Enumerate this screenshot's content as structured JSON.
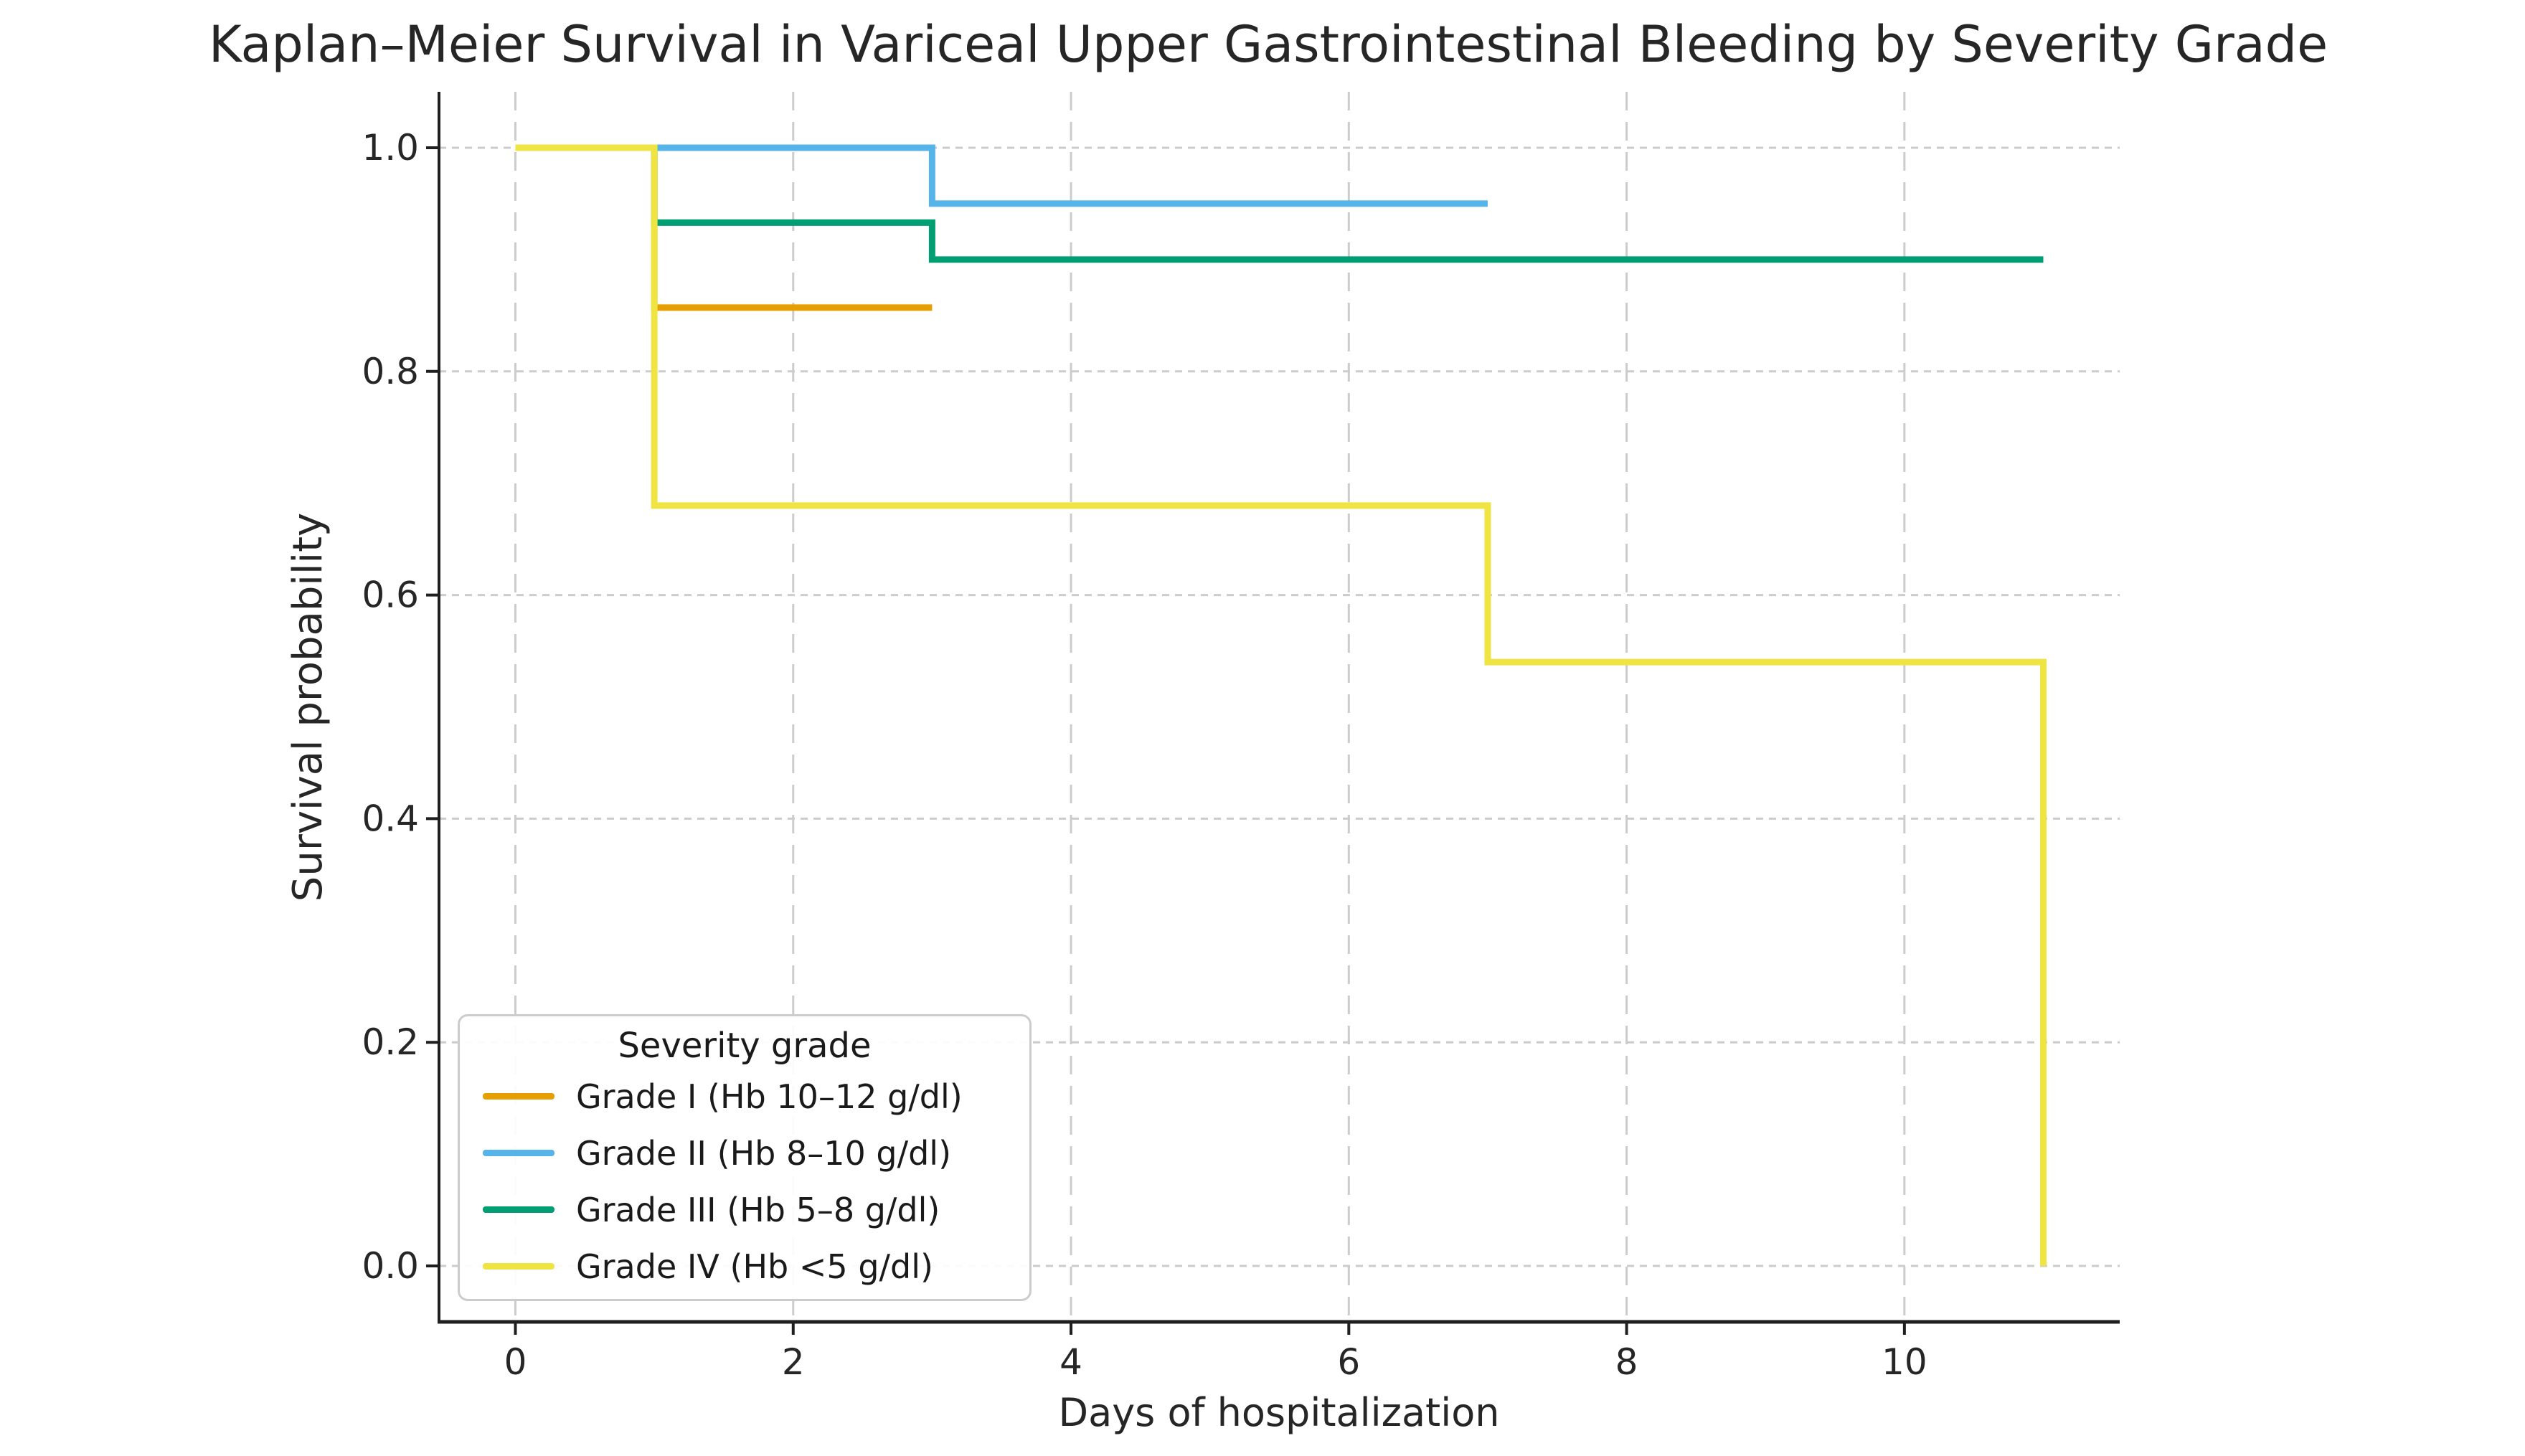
{
  "chart_data": {
    "type": "line",
    "subtype": "kaplan-meier-step",
    "title": "Kaplan–Meier Survival in Variceal Upper Gastrointestinal Bleeding by Severity Grade",
    "xlabel": "Days of hospitalization",
    "ylabel": "Survival probability",
    "xlim": [
      -0.55,
      11.55
    ],
    "ylim": [
      -0.05,
      1.05
    ],
    "x_ticks": [
      0,
      2,
      4,
      6,
      8,
      10
    ],
    "x_tick_labels": [
      "0",
      "2",
      "4",
      "6",
      "8",
      "10"
    ],
    "y_ticks": [
      1.0,
      0.8,
      0.6,
      0.4,
      0.2,
      0.0
    ],
    "y_tick_labels": [
      "1.0",
      "0.8",
      "0.6",
      "0.4",
      "0.2",
      "0.0"
    ],
    "grid": true,
    "grid_color": "#cccccc",
    "axis_color": "#1f1f1f",
    "legend": {
      "title": "Severity grade",
      "position": "lower-left"
    },
    "series": [
      {
        "name": "Grade I (Hb 10–12 g/dl)",
        "color": "#E69F00",
        "points": [
          [
            0,
            1.0
          ],
          [
            1,
            1.0
          ],
          [
            1,
            0.857
          ],
          [
            3,
            0.857
          ]
        ]
      },
      {
        "name": "Grade II (Hb 8–10 g/dl)",
        "color": "#56B4E9",
        "points": [
          [
            0,
            1.0
          ],
          [
            3,
            1.0
          ],
          [
            3,
            0.95
          ],
          [
            7,
            0.95
          ]
        ]
      },
      {
        "name": "Grade III (Hb 5–8 g/dl)",
        "color": "#009E73",
        "points": [
          [
            0,
            1.0
          ],
          [
            1,
            1.0
          ],
          [
            1,
            0.933
          ],
          [
            3,
            0.933
          ],
          [
            3,
            0.9
          ],
          [
            11,
            0.9
          ]
        ]
      },
      {
        "name": "Grade IV (Hb <5 g/dl)",
        "color": "#F0E442",
        "points": [
          [
            0,
            1.0
          ],
          [
            1,
            1.0
          ],
          [
            1,
            0.68
          ],
          [
            7,
            0.68
          ],
          [
            7,
            0.54
          ],
          [
            11,
            0.54
          ],
          [
            11,
            0.0
          ]
        ]
      }
    ]
  }
}
